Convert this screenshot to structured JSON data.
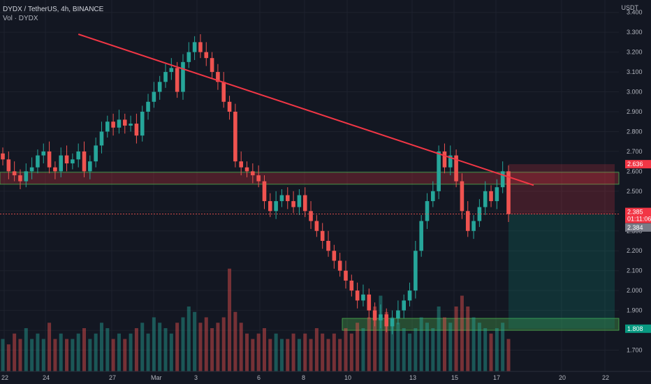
{
  "header": {
    "symbol_line": "DYDX / TetherUS, 4h, BINANCE",
    "volume_line": "Vol · DYDX"
  },
  "currency_label": "USDT",
  "colors": {
    "background": "#131722",
    "grid": "#1e222d",
    "up": "#26a69a",
    "down": "#ef5350",
    "trendline": "#f23645",
    "resistance_zone": "rgba(242,54,69,0.25)",
    "support_zone": "rgba(76,175,80,0.35)",
    "stop_zone": "rgba(242,54,69,0.20)",
    "target_zone": "rgba(8,153,129,0.20)"
  },
  "chart_data": {
    "type": "candlestick",
    "ylim": [
      1.6,
      3.42
    ],
    "y_ticks": [
      "1.700",
      "1.800",
      "1.900",
      "2.000",
      "2.100",
      "2.200",
      "2.300",
      "2.400",
      "2.500",
      "2.600",
      "2.700",
      "2.800",
      "2.900",
      "3.000",
      "3.100",
      "3.200",
      "3.300",
      "3.400"
    ],
    "x_ticks": [
      "22",
      "24",
      "27",
      "Mar",
      "3",
      "6",
      "8",
      "10",
      "13",
      "15",
      "17",
      "20",
      "22"
    ],
    "price_tags": [
      {
        "label": "2.636",
        "value": 2.636,
        "kind": "stop"
      },
      {
        "label": "2.385",
        "value": 2.385,
        "kind": "last"
      },
      {
        "label": "01:11:06",
        "value": 2.385,
        "kind": "countdown"
      },
      {
        "label": "2.384",
        "value": 2.384,
        "kind": "entry"
      },
      {
        "label": "1.808",
        "value": 1.808,
        "kind": "target"
      }
    ],
    "zones": {
      "resistance": [
        2.55,
        2.58
      ],
      "support": [
        1.8,
        1.86
      ],
      "stop": [
        2.384,
        2.636
      ],
      "target": [
        1.808,
        2.384
      ]
    },
    "trendline": {
      "from": [
        13,
        3.29
      ],
      "to": [
        90,
        2.53
      ]
    },
    "closes": [
      2.66,
      2.6,
      2.58,
      2.55,
      2.6,
      2.62,
      2.68,
      2.7,
      2.62,
      2.6,
      2.68,
      2.64,
      2.66,
      2.7,
      2.6,
      2.65,
      2.73,
      2.8,
      2.85,
      2.82,
      2.86,
      2.83,
      2.84,
      2.78,
      2.9,
      2.95,
      3.0,
      3.05,
      3.1,
      3.12,
      3.0,
      3.15,
      3.2,
      3.25,
      3.2,
      3.17,
      3.1,
      3.05,
      2.95,
      2.9,
      2.65,
      2.62,
      2.6,
      2.58,
      2.55,
      2.45,
      2.4,
      2.45,
      2.48,
      2.45,
      2.42,
      2.48,
      2.4,
      2.35,
      2.3,
      2.25,
      2.2,
      2.15,
      2.1,
      2.05,
      2.0,
      1.95,
      1.98,
      1.9,
      1.85,
      1.88,
      1.82,
      1.86,
      1.9,
      1.95,
      2.0,
      2.2,
      2.35,
      2.45,
      2.5,
      2.7,
      2.62,
      2.68,
      2.55,
      2.4,
      2.3,
      2.35,
      2.42,
      2.5,
      2.45,
      2.52,
      2.6,
      2.385
    ],
    "volumes": [
      0.3,
      0.25,
      0.35,
      0.3,
      0.4,
      0.3,
      0.35,
      0.3,
      0.45,
      0.3,
      0.35,
      0.3,
      0.3,
      0.35,
      0.4,
      0.3,
      0.35,
      0.45,
      0.4,
      0.3,
      0.35,
      0.3,
      0.35,
      0.4,
      0.45,
      0.35,
      0.5,
      0.45,
      0.4,
      0.35,
      0.45,
      0.5,
      0.6,
      0.55,
      0.45,
      0.5,
      0.4,
      0.45,
      0.5,
      0.95,
      0.55,
      0.45,
      0.35,
      0.3,
      0.35,
      0.4,
      0.3,
      0.35,
      0.3,
      0.3,
      0.35,
      0.3,
      0.35,
      0.3,
      0.4,
      0.35,
      0.3,
      0.35,
      0.3,
      0.4,
      0.35,
      0.45,
      0.4,
      0.5,
      0.6,
      0.7,
      0.55,
      0.5,
      0.45,
      0.4,
      0.35,
      0.4,
      0.5,
      0.45,
      0.4,
      0.6,
      0.5,
      0.45,
      0.6,
      0.7,
      0.6,
      0.5,
      0.45,
      0.4,
      0.35,
      0.4,
      0.45,
      0.3
    ]
  }
}
